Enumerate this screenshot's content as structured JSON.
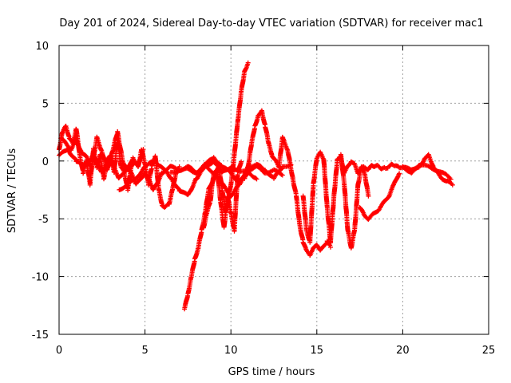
{
  "chart_data": {
    "type": "scatter",
    "title": "Day 201 of 2024, Sidereal Day-to-day VTEC variation (SDTVAR) for receiver mac1",
    "xlabel": "GPS time / hours",
    "ylabel": "SDTVAR / TECUs",
    "xlim": [
      0,
      25
    ],
    "ylim": [
      -15,
      10
    ],
    "xticks": [
      "0",
      "5",
      "10",
      "15",
      "20",
      "25"
    ],
    "yticks": [
      "-15",
      "-10",
      "-5",
      "0",
      "5",
      "10"
    ],
    "grid": true,
    "marker": "+",
    "color": "#ff0000",
    "series": [
      {
        "name": "track-1",
        "x": [
          0,
          0.2,
          0.4,
          0.6,
          0.8,
          1.0,
          1.2,
          1.4,
          1.6,
          1.8,
          2.0,
          2.2,
          2.4,
          2.6,
          2.8,
          3.0,
          3.2,
          3.4,
          3.6,
          3.8,
          4.0,
          4.2,
          4.4,
          4.6,
          4.8,
          5.0,
          5.2,
          5.4,
          5.6,
          5.8,
          6.0,
          6.2,
          6.4,
          6.6,
          6.8,
          7.0
        ],
        "y": [
          1.0,
          2.5,
          3.0,
          2.0,
          1.5,
          2.8,
          0.5,
          -1.0,
          0.0,
          -2.0,
          1.0,
          -0.5,
          0.5,
          -1.5,
          0.0,
          0.5,
          -1.0,
          2.0,
          -0.5,
          -1.0,
          -2.5,
          -0.5,
          0.0,
          -0.5,
          1.0,
          -0.3,
          -2.0,
          -0.5,
          0.5,
          -2.5,
          -3.8,
          -4.0,
          -3.7,
          -2.5,
          -1.0,
          -0.5
        ]
      },
      {
        "name": "track-2",
        "x": [
          0,
          0.5,
          1.0,
          1.5,
          2.0,
          2.5,
          3.0,
          3.5,
          4.0,
          4.5,
          5.0,
          5.5,
          6.0,
          6.5,
          7.0,
          7.5,
          8.0,
          8.5,
          9.0,
          9.5,
          10.0,
          10.5,
          11.0,
          11.5
        ],
        "y": [
          0.5,
          1.0,
          0.0,
          -0.5,
          0.5,
          -1.0,
          0.0,
          -1.5,
          -0.5,
          -2.0,
          -1.0,
          -2.5,
          -1.0,
          -0.5,
          -0.8,
          -0.5,
          -1.0,
          -0.3,
          0.3,
          -0.5,
          -1.0,
          -2.0,
          -1.0,
          -1.5
        ]
      },
      {
        "name": "track-3",
        "x": [
          3.5,
          4.0,
          4.5,
          5.0,
          5.5,
          6.0,
          6.5,
          7.0,
          7.5,
          8.0,
          8.5,
          9.0,
          9.5,
          10.0,
          10.5,
          11.0,
          11.5,
          12.0,
          12.5,
          13.0,
          13.5
        ],
        "y": [
          -2.5,
          -2.0,
          -1.5,
          -0.5,
          0.0,
          -0.5,
          -1.5,
          -2.5,
          -3.0,
          -1.5,
          -0.5,
          -1.0,
          -2.0,
          -3.0,
          -2.0,
          -0.5,
          -0.3,
          -0.8,
          -1.5,
          -0.5,
          -0.3
        ]
      },
      {
        "name": "track-4",
        "x": [
          7.3,
          7.5,
          7.7,
          7.9,
          8.1,
          8.3,
          8.5,
          8.7,
          9.0,
          9.3,
          9.5,
          9.7,
          10.0,
          10.2,
          10.4,
          10.6,
          10.8,
          11.0
        ],
        "y": [
          -12.8,
          -11.5,
          -10.0,
          -8.5,
          -7.5,
          -6.0,
          -4.5,
          -2.5,
          -1.5,
          -0.5,
          -2.5,
          -4.5,
          -2.0,
          0.5,
          3.5,
          6.0,
          7.8,
          8.5
        ]
      },
      {
        "name": "track-5",
        "x": [
          8.4,
          8.6,
          8.8,
          9.0,
          9.2,
          9.4,
          9.6,
          9.8,
          10.0,
          10.2,
          10.4,
          10.6
        ],
        "y": [
          -5.8,
          -4.5,
          -3.5,
          -1.0,
          -0.8,
          -3.5,
          -5.8,
          -3.0,
          -4.5,
          -6.0,
          -1.0,
          0.0
        ]
      },
      {
        "name": "track-6",
        "x": [
          10.8,
          11.0,
          11.2,
          11.4,
          11.6,
          11.8,
          12.0,
          12.2,
          12.4,
          12.6,
          12.8,
          13.0,
          13.3,
          13.6
        ],
        "y": [
          -1.5,
          -0.5,
          1.5,
          3.0,
          4.0,
          4.3,
          3.0,
          1.5,
          0.5,
          0.0,
          -0.5,
          2.0,
          1.0,
          -1.5
        ]
      },
      {
        "name": "track-7",
        "x": [
          13.6,
          13.8,
          14.0,
          14.2,
          14.4,
          14.6,
          14.8,
          15.0,
          15.2,
          15.4,
          15.6,
          15.8
        ],
        "y": [
          -1.5,
          -3.0,
          -5.5,
          -7.0,
          -7.8,
          -8.1,
          -7.6,
          -7.2,
          -7.8,
          -7.3,
          -7.0,
          -7.4
        ]
      },
      {
        "name": "track-8",
        "x": [
          14.2,
          14.4,
          14.6,
          14.8,
          15.0,
          15.2,
          15.4,
          15.6,
          15.8,
          16.0,
          16.2,
          16.4,
          16.6,
          16.8,
          17.0,
          17.2,
          17.4,
          17.6,
          17.8,
          18.0
        ],
        "y": [
          -3.0,
          -6.0,
          -7.0,
          -2.0,
          0.3,
          0.7,
          0.2,
          -4.0,
          -7.0,
          -3.0,
          0.2,
          0.5,
          -2.0,
          -6.0,
          -7.5,
          -6.0,
          -2.0,
          -0.5,
          -1.2,
          -3.0
        ]
      },
      {
        "name": "track-9",
        "x": [
          16.4,
          16.6,
          16.8,
          17.0,
          17.2,
          17.4,
          17.6,
          17.8,
          18.0,
          18.2,
          18.4,
          18.6,
          18.8,
          19.0,
          19.2,
          19.4,
          19.6,
          19.8,
          20.0,
          20.5,
          21.0,
          21.5,
          22.0,
          22.5,
          22.8
        ],
        "y": [
          0.3,
          -1.0,
          -0.5,
          0.0,
          -0.3,
          -1.0,
          -0.6,
          -0.5,
          -0.8,
          -0.3,
          -0.5,
          -0.4,
          -0.7,
          -0.6,
          -0.5,
          -0.3,
          -0.4,
          -0.6,
          -0.5,
          -0.8,
          -0.3,
          -0.5,
          -0.8,
          -1.2,
          -1.5
        ]
      },
      {
        "name": "track-10",
        "x": [
          17.5,
          17.8,
          18.0,
          18.3,
          18.6,
          18.9,
          19.2,
          19.5,
          19.8
        ],
        "y": [
          -4.0,
          -4.8,
          -5.0,
          -4.6,
          -4.2,
          -3.6,
          -3.0,
          -2.0,
          -1.0
        ]
      },
      {
        "name": "track-11",
        "x": [
          20.0,
          20.5,
          21.0,
          21.3,
          21.5,
          21.8,
          22.0,
          22.3,
          22.6,
          22.9
        ],
        "y": [
          -0.5,
          -1.0,
          -0.5,
          0.3,
          0.5,
          -0.5,
          -1.0,
          -1.5,
          -1.8,
          -2.0
        ]
      },
      {
        "name": "track-12",
        "x": [
          0.1,
          0.4,
          0.7,
          1.0,
          1.3,
          1.6,
          1.9,
          2.2,
          2.5,
          2.8,
          3.1,
          3.4,
          3.7,
          4.0,
          4.3,
          4.6,
          4.9
        ],
        "y": [
          2.0,
          1.5,
          1.0,
          1.8,
          0.8,
          0.3,
          -0.5,
          2.0,
          0.8,
          -0.8,
          0.8,
          2.5,
          0.0,
          -0.8,
          0.3,
          -0.5,
          1.0
        ]
      },
      {
        "name": "track-13",
        "x": [
          6.5,
          7.0,
          7.5,
          8.0,
          8.5,
          9.0,
          9.5,
          10.0,
          10.5,
          11.0,
          11.5,
          12.0,
          12.5,
          13.0
        ],
        "y": [
          -1.0,
          -0.8,
          -0.7,
          -1.0,
          -0.5,
          0.0,
          -1.0,
          -0.5,
          -1.0,
          -0.8,
          -0.5,
          -1.0,
          -0.8,
          -1.2
        ]
      }
    ]
  }
}
